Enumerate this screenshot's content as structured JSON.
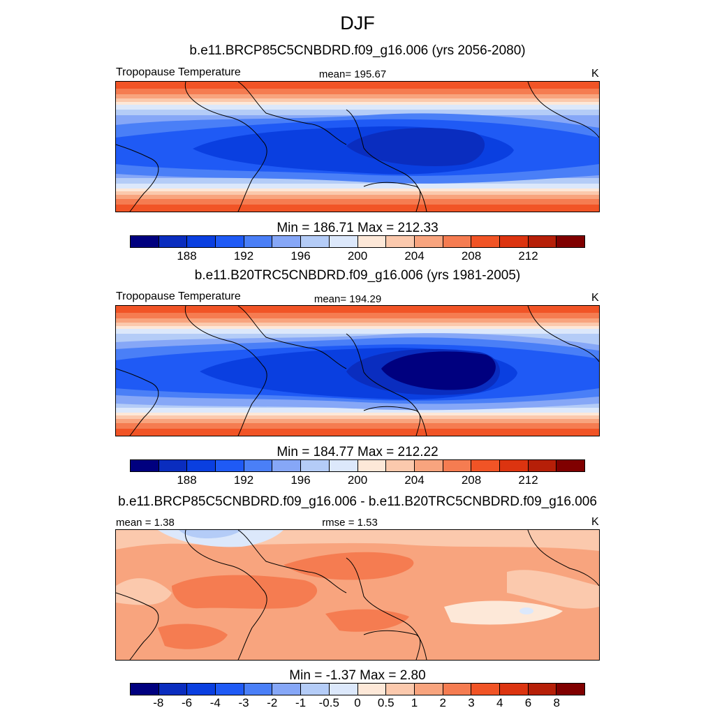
{
  "figure": {
    "title": "DJF"
  },
  "palettes": {
    "abs": [
      "#00007f",
      "#0a2dbf",
      "#0a3fe0",
      "#1f5af5",
      "#4a7ff7",
      "#86a7f7",
      "#b4ccf7",
      "#dce8fb",
      "#fde8d8",
      "#fbc9ad",
      "#f8a47e",
      "#f57c51",
      "#f15426",
      "#dc3410",
      "#b61f08",
      "#800000"
    ],
    "diff": [
      "#00007f",
      "#0a2dbf",
      "#0a3fe0",
      "#1f5af5",
      "#4a7ff7",
      "#86a7f7",
      "#b4ccf7",
      "#dce8fb",
      "#fde8d8",
      "#fbc9ad",
      "#f8a47e",
      "#f57c51",
      "#f15426",
      "#dc3410",
      "#b61f08",
      "#800000"
    ]
  },
  "chart_data": [
    {
      "type": "heatmap",
      "title": "b.e11.BRCP85C5CNBDRD.f09_g16.006 (yrs 2056-2080)",
      "variable": "Tropopause Temperature",
      "mean_label": "mean= 195.67",
      "units": "K",
      "minmax_label": "Min = 186.71 Max = 212.33",
      "min": 186.71,
      "max": 212.33,
      "mean": 195.67,
      "ticks": [
        "188",
        "192",
        "196",
        "200",
        "204",
        "208",
        "212"
      ],
      "tick_positions": [
        2,
        4,
        6,
        8,
        10,
        12,
        14
      ],
      "levels": [
        186,
        188,
        190,
        192,
        194,
        196,
        198,
        200,
        202,
        204,
        206,
        208,
        210,
        212,
        214
      ]
    },
    {
      "type": "heatmap",
      "title": "b.e11.B20TRC5CNBDRD.f09_g16.006 (yrs 1981-2005)",
      "variable": "Tropopause Temperature",
      "mean_label": "mean= 194.29",
      "units": "K",
      "minmax_label": "Min = 184.77 Max = 212.22",
      "min": 184.77,
      "max": 212.22,
      "mean": 194.29,
      "ticks": [
        "188",
        "192",
        "196",
        "200",
        "204",
        "208",
        "212"
      ],
      "tick_positions": [
        2,
        4,
        6,
        8,
        10,
        12,
        14
      ],
      "levels": [
        186,
        188,
        190,
        192,
        194,
        196,
        198,
        200,
        202,
        204,
        206,
        208,
        210,
        212,
        214
      ]
    },
    {
      "type": "heatmap",
      "title": "b.e11.BRCP85C5CNBDRD.f09_g16.006 - b.e11.B20TRC5CNBDRD.f09_g16.006",
      "mean_label": "mean =   1.38",
      "rmse_label": "rmse =   1.53",
      "units": "K",
      "minmax_label": "Min =  -1.37 Max =   2.80",
      "min": -1.37,
      "max": 2.8,
      "mean": 1.38,
      "rmse": 1.53,
      "ticks": [
        "-8",
        "-6",
        "-4",
        "-3",
        "-2",
        "-1",
        "-0.5",
        "0",
        "0.5",
        "1",
        "2",
        "3",
        "4",
        "6",
        "8"
      ],
      "tick_positions": [
        1,
        2,
        3,
        4,
        5,
        6,
        7,
        8,
        9,
        10,
        11,
        12,
        13,
        14,
        15
      ],
      "levels": [
        -8,
        -6,
        -4,
        -3,
        -2,
        -1,
        -0.5,
        0,
        0.5,
        1,
        2,
        3,
        4,
        6,
        8
      ]
    }
  ]
}
